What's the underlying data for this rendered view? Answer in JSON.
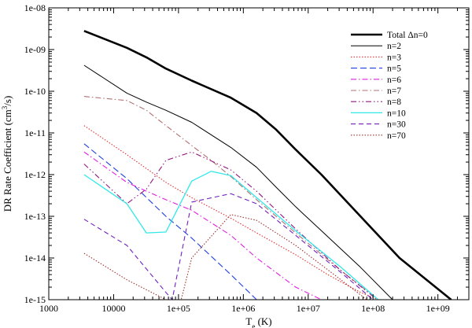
{
  "chart_data": {
    "type": "line",
    "xlabel": "T_e (K)",
    "xlabel_main": "T",
    "xlabel_sub": "e",
    "xlabel_unit": " (K)",
    "ylabel": "DR Rate Coefficient (cm^3/s)",
    "ylabel_main": "DR Rate Coefficient (cm",
    "ylabel_sup": "3",
    "ylabel_unit": "/s)",
    "x_scale": "log",
    "y_scale": "log",
    "xlim": [
      1000,
      3000000000
    ],
    "ylim": [
      1e-15,
      1e-08
    ],
    "x_ticks": [
      1000,
      10000,
      100000,
      1000000,
      10000000,
      100000000,
      1000000000
    ],
    "x_tick_labels": [
      "1000",
      "10000",
      "1e+05",
      "1e+06",
      "1e+07",
      "1e+08",
      "1e+09"
    ],
    "y_ticks": [
      1e-15,
      1e-14,
      1e-13,
      1e-12,
      1e-11,
      1e-10,
      1e-09,
      1e-08
    ],
    "y_tick_labels": [
      "1e-15",
      "1e-14",
      "1e-13",
      "1e-12",
      "1e-11",
      "1e-10",
      "1e-09",
      "1e-08"
    ],
    "legend_position": "top-right",
    "series": [
      {
        "name": "Total Δn=0",
        "color": "#000000",
        "dash": "solid",
        "width": 2.6,
        "x": [
          3500,
          16000,
          32000,
          64000,
          160000,
          640000,
          1600000,
          3200000,
          6400000,
          16000000,
          64000000,
          256000000,
          1600000000
        ],
        "y": [
          2.8e-09,
          1.1e-09,
          6.5e-10,
          3.5e-10,
          1.8e-10,
          7e-11,
          3e-11,
          1.2e-11,
          4e-12,
          1e-12,
          1e-13,
          1e-14,
          1e-15
        ]
      },
      {
        "name": "n=2",
        "color": "#000000",
        "dash": "solid",
        "width": 1,
        "x": [
          3500,
          16000,
          32000,
          64000,
          160000,
          640000,
          1600000,
          3200000,
          6400000,
          16000000,
          64000000,
          200000000
        ],
        "y": [
          4.2e-10,
          9e-11,
          5.5e-11,
          3.5e-11,
          1.8e-11,
          4.5e-12,
          1.5e-12,
          5e-13,
          1.7e-13,
          4.5e-14,
          6e-15,
          1e-15
        ]
      },
      {
        "name": "n=3",
        "color": "#e03030",
        "dash": "1.5,2",
        "x": [
          3500,
          16000,
          64000,
          160000,
          640000,
          1600000,
          6400000,
          20000000,
          64000000,
          120000000
        ],
        "y": [
          1.5e-11,
          3e-12,
          6.5e-13,
          2.8e-13,
          9e-14,
          4e-14,
          1.2e-14,
          4e-15,
          1.5e-15,
          1e-15
        ]
      },
      {
        "name": "n=5",
        "color": "#2040e0",
        "dash": "8,4",
        "x": [
          3500,
          16000,
          64000,
          160000,
          640000,
          1600000
        ],
        "y": [
          5.5e-12,
          8e-13,
          1e-13,
          3e-14,
          4e-15,
          1e-15
        ]
      },
      {
        "name": "n=6",
        "color": "#e020e0",
        "dash": "7,3,1.5,3",
        "x": [
          3500,
          16000,
          64000,
          160000,
          640000,
          1600000,
          6400000,
          16000000
        ],
        "y": [
          3.5e-12,
          6.5e-13,
          2.5e-13,
          1.4e-13,
          3.5e-14,
          1e-14,
          2e-15,
          1e-15
        ]
      },
      {
        "name": "n=7",
        "color": "#b07070",
        "dash": "7,3,1.5,3",
        "x": [
          3500,
          16000,
          32000,
          64000,
          160000,
          320000,
          640000,
          1600000,
          6400000,
          32000000,
          120000000
        ],
        "y": [
          7.5e-11,
          6e-11,
          3.5e-11,
          1.5e-11,
          5e-12,
          2.2e-12,
          9e-13,
          2.5e-13,
          4e-14,
          5e-15,
          1e-15
        ]
      },
      {
        "name": "n=8",
        "color": "#901880",
        "dash": "7,3,1.5,3,1.5,3",
        "x": [
          3500,
          16000,
          32000,
          64000,
          160000,
          640000,
          1600000,
          6400000,
          32000000,
          100000000
        ],
        "y": [
          1.8e-12,
          2e-13,
          4.5e-13,
          2.2e-12,
          3.5e-12,
          1.3e-12,
          4e-13,
          5e-14,
          5e-15,
          1.2e-15
        ]
      },
      {
        "name": "n=10",
        "color": "#30e8e8",
        "dash": "solid",
        "width": 1.3,
        "x": [
          3500,
          16000,
          32000,
          64000,
          160000,
          320000,
          640000,
          1600000,
          6400000,
          32000000,
          120000000
        ],
        "y": [
          1e-12,
          2e-13,
          4e-14,
          4.2e-14,
          7e-13,
          1.2e-12,
          9.5e-13,
          2.8e-13,
          4.5e-14,
          6e-15,
          1e-15
        ]
      },
      {
        "name": "n=30",
        "color": "#7020c0",
        "dash": "6,4",
        "x": [
          3500,
          16000,
          64000,
          80000,
          160000,
          640000,
          1600000,
          6400000,
          32000000,
          100000000
        ],
        "y": [
          8.5e-14,
          2e-14,
          1.5e-15,
          1e-15,
          2.2e-13,
          3.5e-13,
          2e-13,
          3.5e-14,
          4.5e-15,
          1e-15
        ]
      },
      {
        "name": "n=70",
        "color": "#a03030",
        "dash": "1.5,2",
        "x": [
          3500,
          16000,
          64000,
          110000,
          160000,
          640000,
          1600000,
          6400000,
          32000000,
          80000000
        ],
        "y": [
          1.3e-14,
          3e-15,
          1e-15,
          1e-15,
          1e-14,
          1.1e-13,
          8e-14,
          2e-14,
          3e-15,
          1e-15
        ]
      }
    ]
  }
}
